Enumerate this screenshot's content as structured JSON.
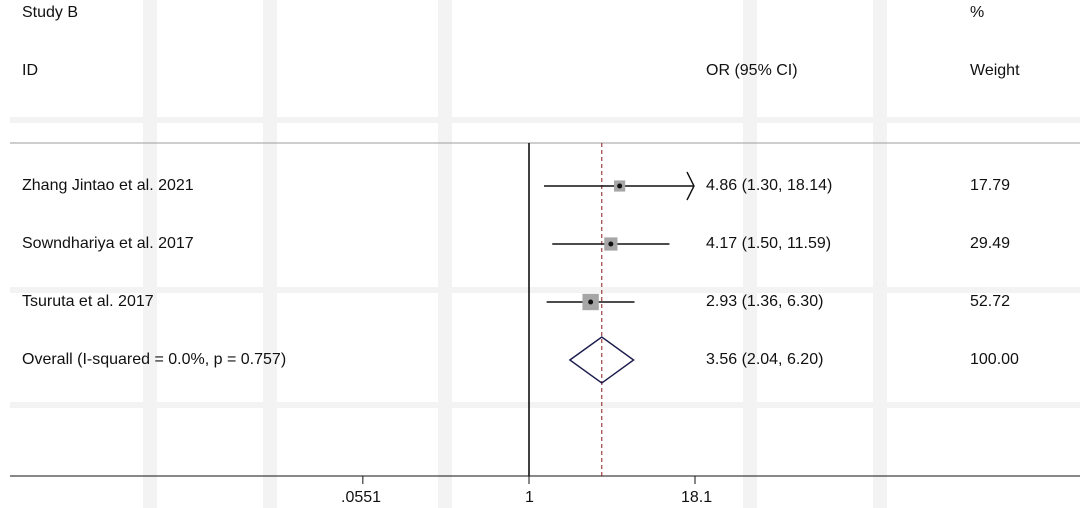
{
  "chart_data": {
    "type": "forest",
    "x_scale": "log",
    "header": {
      "study_line1": "Study B",
      "study_line2": "ID",
      "effect_label": "OR (95% CI)",
      "weight_line1": "%",
      "weight_line2": "Weight"
    },
    "studies": [
      {
        "label": "Zhang Jintao et al. 2021",
        "or": 4.86,
        "lower": 1.3,
        "upper": 18.14,
        "ci_text": "4.86 (1.30, 18.14)",
        "weight": 17.79,
        "weight_text": "17.79",
        "arrow_right": true
      },
      {
        "label": "Sowndhariya et al. 2017",
        "or": 4.17,
        "lower": 1.5,
        "upper": 11.59,
        "ci_text": "4.17 (1.50, 11.59)",
        "weight": 29.49,
        "weight_text": "29.49",
        "arrow_right": false
      },
      {
        "label": "Tsuruta et al. 2017",
        "or": 2.93,
        "lower": 1.36,
        "upper": 6.3,
        "ci_text": "2.93 (1.36, 6.30)",
        "weight": 52.72,
        "weight_text": "52.72",
        "arrow_right": false
      }
    ],
    "overall": {
      "label": "Overall  (I-squared = 0.0%, p = 0.757)",
      "or": 3.56,
      "lower": 2.04,
      "upper": 6.2,
      "ci_text": "3.56 (2.04, 6.20)",
      "weight_text": "100.00"
    },
    "x_ticks": [
      {
        "value": 0.0551,
        "label": ".0551"
      },
      {
        "value": 1,
        "label": "1"
      },
      {
        "value": 18.1,
        "label": "18.1"
      }
    ],
    "null_line": 1,
    "colors": {
      "line": "#111111",
      "marker_box": "#a6a6a6",
      "overall_dashed": "#8b1a1a",
      "grid": "#f3f3f3"
    }
  }
}
